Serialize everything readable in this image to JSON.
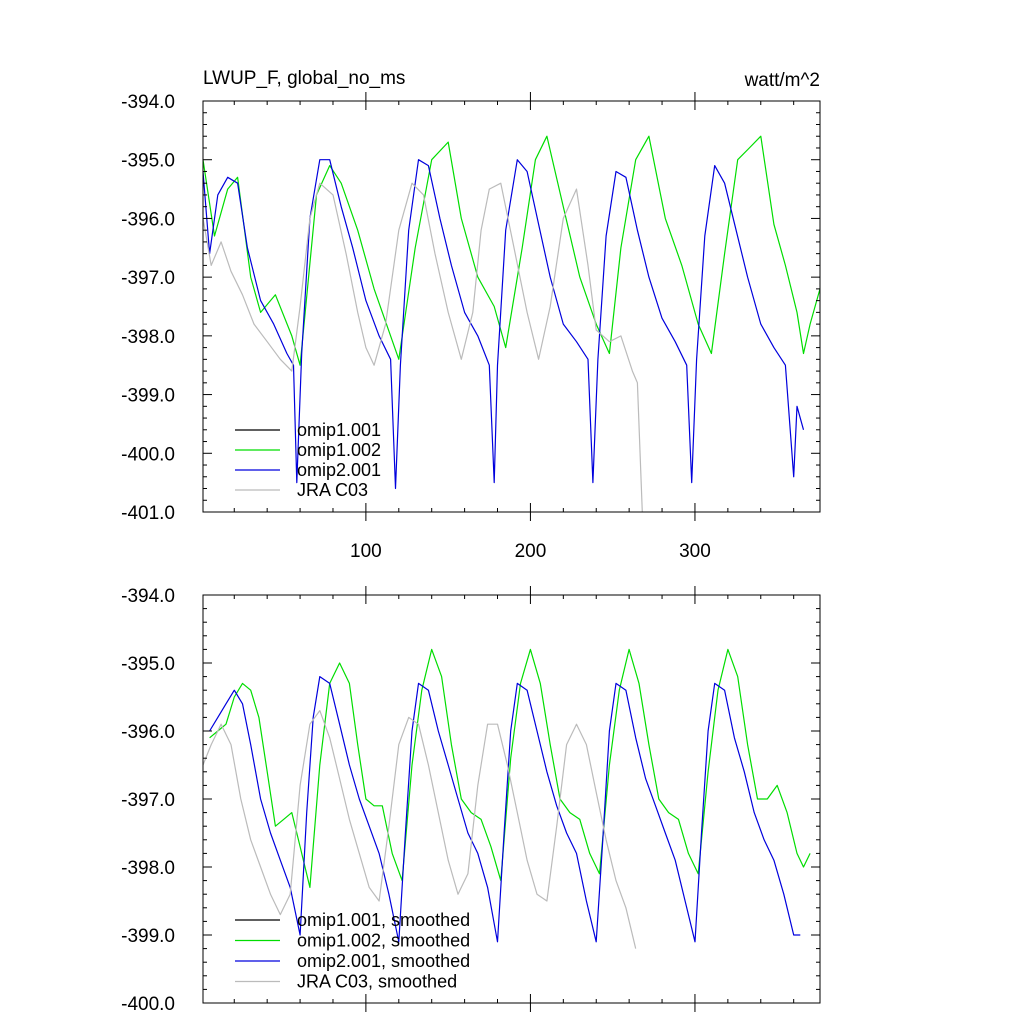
{
  "chart_data": [
    {
      "type": "line",
      "title": "LWUP_F, global_no_ms",
      "units": "watt/m^2",
      "xlabel": "",
      "ylabel": "",
      "xlim": [
        1,
        376
      ],
      "ylim": [
        -401.0,
        -394.0
      ],
      "x_ticks": [
        100,
        200,
        300
      ],
      "x_tick_labels": [
        "100",
        "200",
        "300"
      ],
      "y_ticks": [
        -394.0,
        -395.0,
        -396.0,
        -397.0,
        -398.0,
        -399.0,
        -400.0,
        -401.0
      ],
      "y_tick_labels": [
        "-394.0",
        "-395.0",
        "-396.0",
        "-397.0",
        "-398.0",
        "-399.0",
        "-400.0",
        "-401.0"
      ],
      "legend_position": "bottom-left",
      "series": [
        {
          "name": "omip1.001",
          "color": "#000000",
          "x": [],
          "values": []
        },
        {
          "name": "omip1.002",
          "color": "#00dd00",
          "x": [
            1,
            8,
            16,
            22,
            30,
            36,
            45,
            55,
            60,
            70,
            78,
            85,
            95,
            105,
            115,
            120,
            130,
            140,
            150,
            158,
            168,
            178,
            185,
            195,
            203,
            210,
            220,
            230,
            240,
            248,
            255,
            264,
            272,
            282,
            292,
            302,
            310,
            318,
            326,
            333,
            340,
            348,
            355,
            362,
            366,
            370,
            376
          ],
          "values": [
            -395.0,
            -396.3,
            -395.5,
            -395.3,
            -397.0,
            -397.6,
            -397.3,
            -398.0,
            -398.5,
            -395.6,
            -395.1,
            -395.4,
            -396.2,
            -397.2,
            -398.0,
            -398.4,
            -396.5,
            -395.0,
            -394.7,
            -396.0,
            -397.0,
            -397.5,
            -398.2,
            -396.5,
            -395.0,
            -394.6,
            -395.8,
            -397.0,
            -397.8,
            -398.3,
            -396.5,
            -395.0,
            -394.6,
            -396.0,
            -396.8,
            -397.8,
            -398.3,
            -396.6,
            -395.0,
            -394.8,
            -394.6,
            -396.1,
            -396.8,
            -397.6,
            -398.3,
            -397.8,
            -397.2
          ]
        },
        {
          "name": "omip2.001",
          "color": "#0000dd",
          "x": [
            1,
            5,
            10,
            16,
            22,
            28,
            36,
            44,
            52,
            56,
            58,
            61,
            66,
            72,
            78,
            85,
            92,
            100,
            108,
            115,
            118,
            121,
            126,
            132,
            138,
            145,
            152,
            160,
            168,
            175,
            178,
            180,
            185,
            192,
            198,
            205,
            212,
            220,
            228,
            235,
            238,
            241,
            246,
            252,
            258,
            265,
            272,
            280,
            288,
            295,
            298,
            301,
            306,
            312,
            318,
            325,
            332,
            340,
            348,
            355,
            360,
            362,
            366
          ],
          "values": [
            -395.2,
            -396.6,
            -395.6,
            -395.3,
            -395.4,
            -396.5,
            -397.4,
            -397.8,
            -398.3,
            -398.5,
            -400.5,
            -398.3,
            -396.0,
            -395.0,
            -395.0,
            -395.8,
            -396.5,
            -397.4,
            -398.0,
            -398.4,
            -400.6,
            -398.5,
            -396.2,
            -395.0,
            -395.1,
            -396.0,
            -396.8,
            -397.6,
            -398.0,
            -398.5,
            -400.5,
            -398.5,
            -396.2,
            -395.0,
            -395.2,
            -396.1,
            -397.0,
            -397.8,
            -398.1,
            -398.4,
            -400.5,
            -398.4,
            -396.3,
            -395.2,
            -395.3,
            -396.2,
            -397.0,
            -397.7,
            -398.1,
            -398.5,
            -400.5,
            -398.4,
            -396.3,
            -395.1,
            -395.4,
            -396.2,
            -397.0,
            -397.8,
            -398.2,
            -398.5,
            -400.4,
            -399.2,
            -399.6
          ]
        },
        {
          "name": "JRA C03",
          "color": "#bbbbbb",
          "x": [
            1,
            6,
            12,
            18,
            25,
            32,
            40,
            48,
            55,
            60,
            66,
            72,
            80,
            88,
            95,
            100,
            105,
            112,
            120,
            128,
            135,
            142,
            150,
            158,
            165,
            170,
            175,
            182,
            190,
            198,
            205,
            212,
            220,
            228,
            235,
            240,
            248,
            255,
            262,
            265,
            268
          ],
          "values": [
            -396.0,
            -396.8,
            -396.4,
            -396.9,
            -397.3,
            -397.8,
            -398.1,
            -398.4,
            -398.6,
            -397.5,
            -396.0,
            -395.4,
            -395.6,
            -396.6,
            -397.6,
            -398.2,
            -398.5,
            -397.8,
            -396.2,
            -395.4,
            -395.6,
            -396.6,
            -397.6,
            -398.4,
            -397.6,
            -396.2,
            -395.5,
            -395.4,
            -396.5,
            -397.6,
            -398.4,
            -397.5,
            -396.0,
            -395.5,
            -396.8,
            -397.9,
            -398.1,
            -398.0,
            -398.6,
            -398.8,
            -401.0
          ]
        }
      ],
      "legend": [
        "omip1.001",
        "omip1.002",
        "omip2.001",
        "JRA C03"
      ]
    },
    {
      "type": "line",
      "title": "",
      "xlabel": "",
      "ylabel": "",
      "xlim": [
        1,
        376
      ],
      "ylim": [
        -400.0,
        -394.0
      ],
      "x_ticks": [
        100,
        200,
        300
      ],
      "x_tick_labels": [
        "",
        "",
        ""
      ],
      "y_ticks": [
        -394.0,
        -395.0,
        -396.0,
        -397.0,
        -398.0,
        -399.0,
        -400.0
      ],
      "y_tick_labels": [
        "-394.0",
        "-395.0",
        "-396.0",
        "-397.0",
        "-398.0",
        "-399.0",
        "-400.0"
      ],
      "legend_position": "bottom-left",
      "series": [
        {
          "name": "omip1.001, smoothed",
          "color": "#000000",
          "x": [],
          "values": []
        },
        {
          "name": "omip1.002, smoothed",
          "color": "#00dd00",
          "x": [
            5,
            10,
            15,
            20,
            25,
            30,
            35,
            40,
            45,
            50,
            55,
            60,
            66,
            72,
            78,
            84,
            90,
            95,
            100,
            105,
            110,
            116,
            122,
            128,
            134,
            140,
            146,
            152,
            158,
            164,
            170,
            176,
            182,
            188,
            194,
            200,
            206,
            212,
            218,
            224,
            230,
            236,
            242,
            248,
            254,
            260,
            266,
            272,
            278,
            284,
            290,
            296,
            302,
            308,
            314,
            320,
            326,
            332,
            338,
            344,
            350,
            356,
            362,
            366,
            370
          ],
          "values": [
            -396.1,
            -396.0,
            -395.9,
            -395.5,
            -395.3,
            -395.4,
            -395.8,
            -396.6,
            -397.4,
            -397.3,
            -397.2,
            -397.7,
            -398.3,
            -396.5,
            -395.3,
            -395.0,
            -395.3,
            -396.2,
            -397.0,
            -397.1,
            -397.1,
            -397.8,
            -398.2,
            -396.5,
            -395.4,
            -394.8,
            -395.2,
            -396.2,
            -397.0,
            -397.2,
            -397.3,
            -397.7,
            -398.2,
            -396.4,
            -395.3,
            -394.8,
            -395.3,
            -396.2,
            -397.0,
            -397.2,
            -397.3,
            -397.8,
            -398.1,
            -396.5,
            -395.4,
            -394.8,
            -395.3,
            -396.2,
            -397.0,
            -397.2,
            -397.3,
            -397.8,
            -398.1,
            -396.6,
            -395.4,
            -394.8,
            -395.2,
            -396.2,
            -397.0,
            -397.0,
            -396.8,
            -397.2,
            -397.8,
            -398.0,
            -397.8
          ]
        },
        {
          "name": "omip2.001, smoothed",
          "color": "#0000dd",
          "x": [
            5,
            10,
            15,
            20,
            25,
            30,
            36,
            42,
            48,
            54,
            60,
            64,
            68,
            72,
            78,
            84,
            90,
            96,
            102,
            108,
            114,
            120,
            124,
            128,
            132,
            138,
            144,
            150,
            156,
            162,
            168,
            174,
            180,
            184,
            188,
            192,
            198,
            204,
            210,
            216,
            222,
            228,
            234,
            240,
            244,
            248,
            252,
            258,
            264,
            270,
            276,
            282,
            288,
            294,
            300,
            304,
            308,
            312,
            318,
            324,
            330,
            336,
            342,
            348,
            354,
            360,
            364
          ],
          "values": [
            -396.0,
            -395.8,
            -395.6,
            -395.4,
            -395.6,
            -396.2,
            -397.0,
            -397.5,
            -397.9,
            -398.3,
            -399.0,
            -397.2,
            -395.8,
            -395.2,
            -395.3,
            -395.9,
            -396.5,
            -397.0,
            -397.4,
            -397.8,
            -398.4,
            -399.1,
            -397.5,
            -396.0,
            -395.3,
            -395.4,
            -396.0,
            -396.5,
            -397.0,
            -397.5,
            -397.8,
            -398.3,
            -399.1,
            -397.5,
            -396.0,
            -395.3,
            -395.4,
            -396.0,
            -396.6,
            -397.1,
            -397.5,
            -397.8,
            -398.5,
            -399.1,
            -397.6,
            -396.0,
            -395.3,
            -395.4,
            -396.1,
            -396.7,
            -397.1,
            -397.5,
            -397.9,
            -398.5,
            -399.1,
            -397.5,
            -396.0,
            -395.3,
            -395.4,
            -396.1,
            -396.6,
            -397.2,
            -397.6,
            -397.9,
            -398.4,
            -399.0,
            -399.0
          ]
        },
        {
          "name": "JRA C03, smoothed",
          "color": "#bbbbbb",
          "x": [
            1,
            6,
            12,
            18,
            24,
            30,
            36,
            42,
            48,
            54,
            60,
            66,
            72,
            78,
            84,
            90,
            96,
            102,
            108,
            114,
            120,
            126,
            132,
            138,
            144,
            150,
            156,
            162,
            168,
            174,
            180,
            186,
            192,
            198,
            204,
            210,
            216,
            222,
            228,
            234,
            240,
            246,
            252,
            258,
            264
          ],
          "values": [
            -396.5,
            -396.2,
            -395.9,
            -396.2,
            -397.0,
            -397.6,
            -398.0,
            -398.4,
            -398.7,
            -398.4,
            -396.8,
            -395.9,
            -395.7,
            -396.1,
            -396.7,
            -397.3,
            -397.8,
            -398.3,
            -398.5,
            -397.4,
            -396.2,
            -395.8,
            -395.9,
            -396.5,
            -397.2,
            -397.9,
            -398.4,
            -398.1,
            -396.8,
            -395.9,
            -395.9,
            -396.5,
            -397.2,
            -397.9,
            -398.4,
            -398.5,
            -397.4,
            -396.2,
            -395.9,
            -396.2,
            -396.9,
            -397.6,
            -398.2,
            -398.6,
            -399.2
          ]
        }
      ],
      "legend": [
        "omip1.001, smoothed",
        "omip1.002, smoothed",
        "omip2.001, smoothed",
        "JRA C03, smoothed"
      ]
    }
  ]
}
